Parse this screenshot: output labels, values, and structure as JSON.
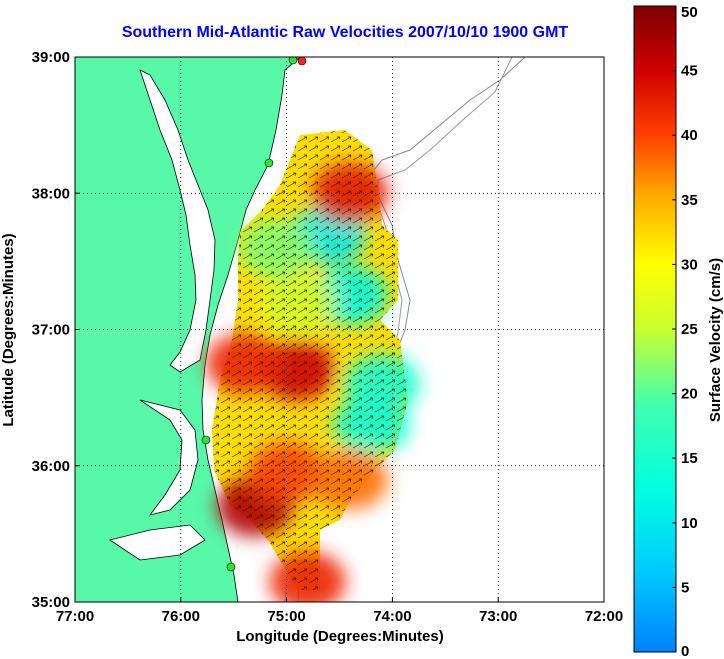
{
  "chart_data": {
    "type": "heatmap",
    "title": "Southern Mid-Atlantic Raw Velocities 2007/10/10 1900 GMT",
    "xlabel": "Longitude (Degrees:Minutes)",
    "ylabel": "Latitude (Degrees:Minutes)",
    "xlim": [
      -77,
      -72
    ],
    "ylim": [
      35,
      39
    ],
    "x_ticks": [
      {
        "value": -77,
        "label": "77:00"
      },
      {
        "value": -76,
        "label": "76:00"
      },
      {
        "value": -75,
        "label": "75:00"
      },
      {
        "value": -74,
        "label": "74:00"
      },
      {
        "value": -73,
        "label": "73:00"
      },
      {
        "value": -72,
        "label": "72:00"
      }
    ],
    "y_ticks": [
      {
        "value": 35,
        "label": "35:00"
      },
      {
        "value": 36,
        "label": "36:00"
      },
      {
        "value": 37,
        "label": "37:00"
      },
      {
        "value": 38,
        "label": "38:00"
      },
      {
        "value": 39,
        "label": "39:00"
      }
    ],
    "grid": true,
    "colorbar": {
      "label": "Surface Velocity (cm/s)",
      "range": [
        0,
        50
      ],
      "ticks": [
        "0",
        "5",
        "10",
        "15",
        "20",
        "25",
        "30",
        "35",
        "40",
        "45",
        "50"
      ],
      "placement": "right"
    },
    "velocity_regions": [
      {
        "lon": -74.6,
        "lat": 37.7,
        "speed": 10
      },
      {
        "lon": -74.4,
        "lat": 37.25,
        "speed": 12
      },
      {
        "lon": -74.4,
        "lat": 38.0,
        "speed": 43
      },
      {
        "lon": -74.9,
        "lat": 36.7,
        "speed": 45
      },
      {
        "lon": -75.4,
        "lat": 36.75,
        "speed": 42
      },
      {
        "lon": -75.3,
        "lat": 35.7,
        "speed": 47
      },
      {
        "lon": -75.0,
        "lat": 35.95,
        "speed": 40
      },
      {
        "lon": -74.2,
        "lat": 36.3,
        "speed": 14
      },
      {
        "lon": -74.1,
        "lat": 36.6,
        "speed": 15
      },
      {
        "lon": -74.8,
        "lat": 35.15,
        "speed": 42
      },
      {
        "lon": -74.4,
        "lat": 35.9,
        "speed": 38
      },
      {
        "lon": -74.9,
        "lat": 37.2,
        "speed": 26
      },
      {
        "lon": -75.1,
        "lat": 37.6,
        "speed": 22
      }
    ]
  },
  "colors": {
    "land": "#58f8a9",
    "ocean": "#ffffff",
    "title": "#0000ff",
    "grid": "#000000",
    "stations": "#33e033",
    "station_alert": "#ff2222"
  }
}
